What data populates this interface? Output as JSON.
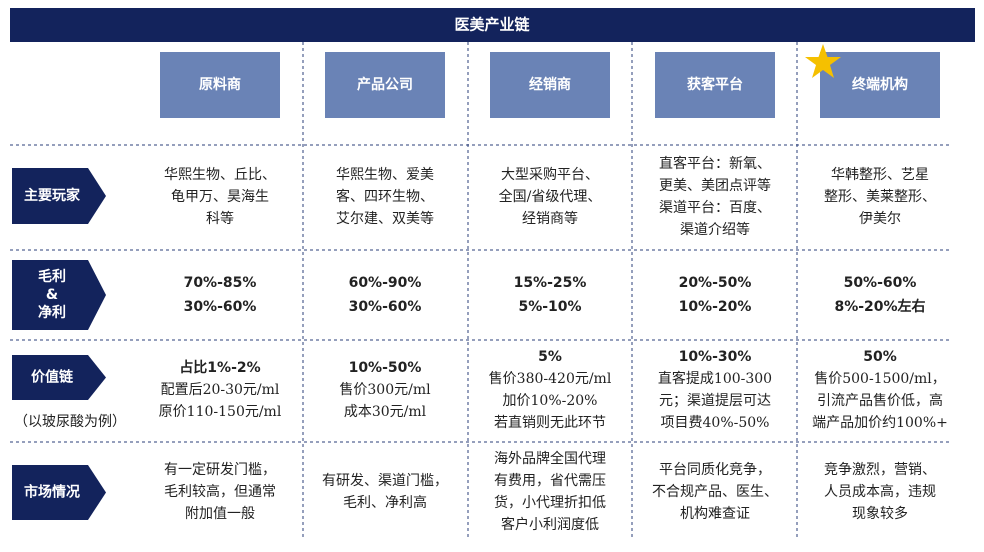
{
  "header": {
    "title": "医美产业链"
  },
  "columns": [
    "原料商",
    "产品公司",
    "经销商",
    "获客平台",
    "终端机构"
  ],
  "rows": [
    {
      "label": [
        "主要玩家"
      ],
      "cells": [
        [
          "华熙生物、丘比、",
          "龟甲万、昊海生",
          "科等"
        ],
        [
          "华熙生物、爱美",
          "客、四环生物、",
          "艾尔建、双美等"
        ],
        [
          "大型采购平台、",
          "全国/省级代理、",
          "经销商等"
        ],
        [
          "直客平台：新氧、",
          "更美、美团点评等",
          "渠道平台：百度、",
          "渠道介绍等"
        ],
        [
          "华韩整形、艺星",
          "整形、美莱整形、",
          "伊美尔"
        ]
      ]
    },
    {
      "label": [
        "毛利",
        "&",
        "净利"
      ],
      "cells": [
        [
          "70%-85%",
          "30%-60%"
        ],
        [
          "60%-90%",
          "30%-60%"
        ],
        [
          "15%-25%",
          "5%-10%"
        ],
        [
          "20%-50%",
          "10%-20%"
        ],
        [
          "50%-60%",
          "8%-20%左右"
        ]
      ]
    },
    {
      "label": [
        "价值链"
      ],
      "note": "（以玻尿酸为例）",
      "cells": [
        [
          "占比1%-2%",
          "配置后20-30元/ml",
          "原价110-150元/ml"
        ],
        [
          "10%-50%",
          "售价300元/ml",
          "成本30元/ml"
        ],
        [
          "5%",
          "售价380-420元/ml",
          "加价10%-20%",
          "若直销则无此环节"
        ],
        [
          "10%-30%",
          "直客提成100-300",
          "元；渠道提层可达",
          "项目费40%-50%"
        ],
        [
          "50%",
          "售价500-1500/ml，",
          "引流产品售价低，高",
          "端产品加价约100%+"
        ]
      ]
    },
    {
      "label": [
        "市场情况"
      ],
      "cells": [
        [
          "有一定研发门槛，",
          "毛利较高，但通常",
          "附加值一般"
        ],
        [
          "有研发、渠道门槛，",
          "毛利、净利高"
        ],
        [
          "海外品牌全国代理",
          "有费用，省代需压",
          "货，小代理折扣低",
          "客户小利润度低"
        ],
        [
          "平台同质化竞争，",
          "不合规产品、医生、",
          "机构难查证"
        ],
        [
          "竞争激烈，营销、",
          "人员成本高，违规",
          "现象较多"
        ]
      ]
    }
  ]
}
